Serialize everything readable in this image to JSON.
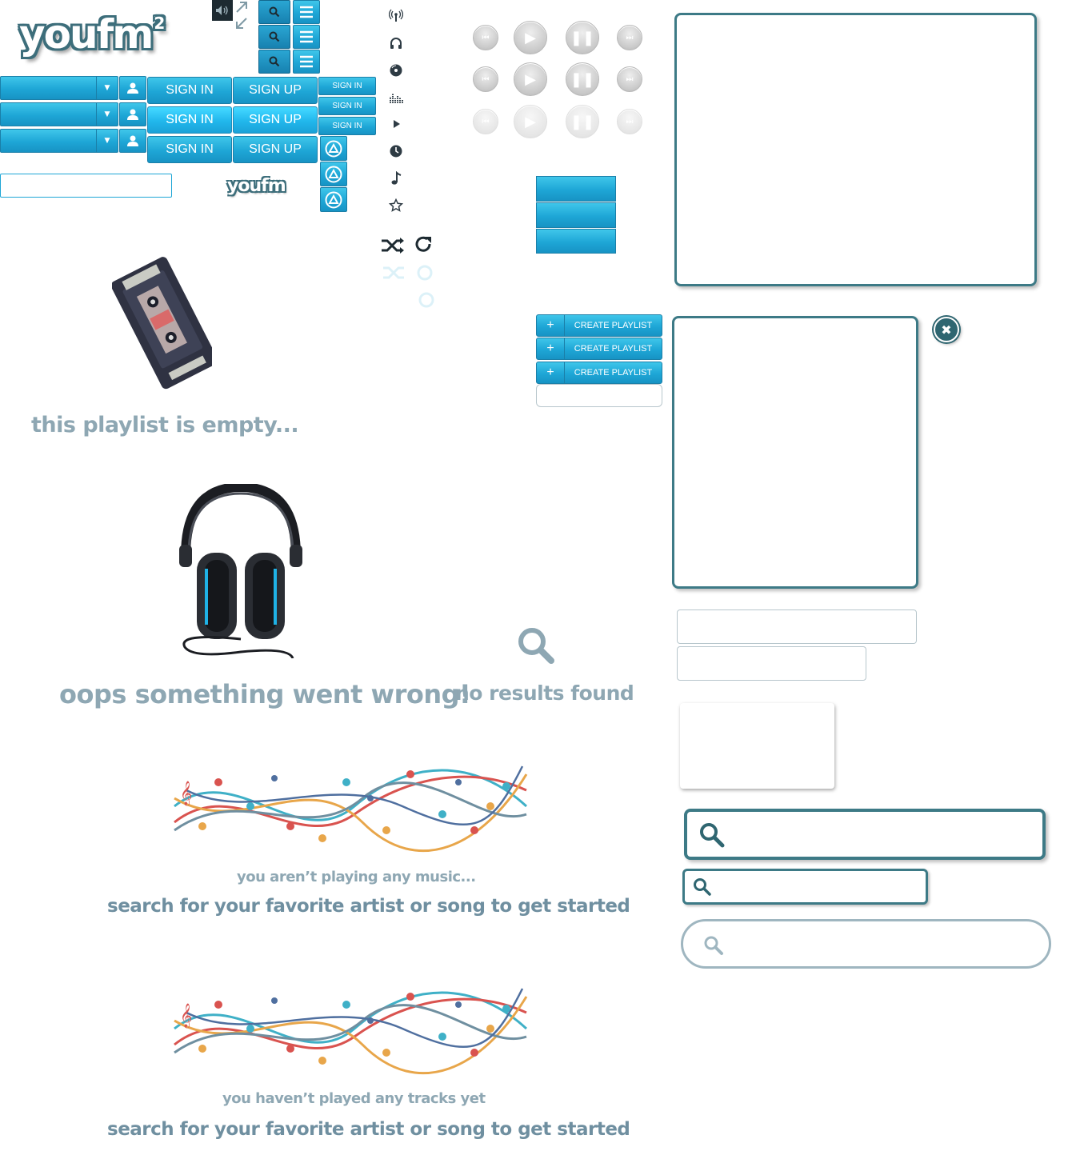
{
  "logo": {
    "main": "youfm",
    "superscript": "2",
    "small": "youfm"
  },
  "auth": {
    "sign_in": "SIGN IN",
    "sign_up": "SIGN UP",
    "mini_sign_in": "SIGN IN"
  },
  "playlist": {
    "create_label": "CREATE PLAYLIST",
    "create_symbol": "+"
  },
  "messages": {
    "empty_playlist": "this playlist is empty...",
    "error": "oops something went wrong!",
    "no_results": "no results found",
    "not_playing": "you aren’t playing any music...",
    "no_tracks": "you haven’t played any tracks yet",
    "search_prompt": "search for your favorite artist or song to get started"
  },
  "icons": {
    "volume": "volume-icon",
    "expand": "expand-arrow-icon",
    "collapse": "collapse-arrow-icon",
    "search": "search-icon",
    "menu": "hamburger-menu-icon",
    "user": "user-icon",
    "dropdown": "dropdown-arrow-icon",
    "radio": "radio-antenna-icon",
    "headphones": "headphones-icon",
    "vinyl": "vinyl-icon",
    "equalizer": "equalizer-icon",
    "play": "play-icon",
    "clock": "clock-icon",
    "note": "music-note-icon",
    "star": "star-icon",
    "shuffle": "shuffle-icon",
    "repeat": "repeat-icon",
    "close": "close-icon",
    "brand_badge": "brand-badge-icon"
  },
  "colors": {
    "accent_blue": "#1ea6d6",
    "teal_border": "#3d7a86",
    "message_gray": "#8ea7b3"
  }
}
